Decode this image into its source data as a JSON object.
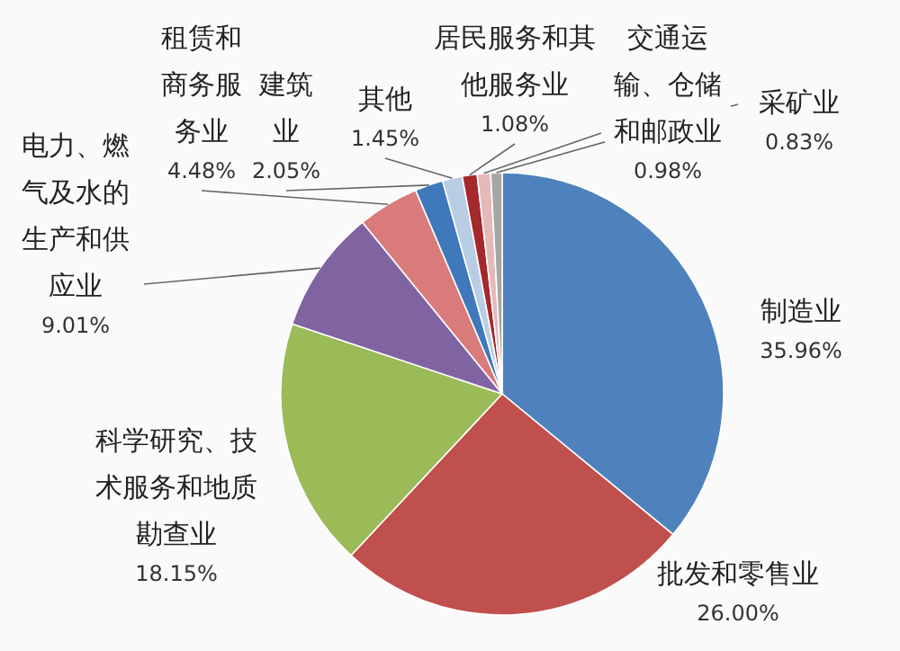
{
  "chart_data": {
    "type": "pie",
    "categories": [
      "制造业",
      "批发和零售业",
      "科学研究、技术服务和地质勘查业",
      "电力、燃气及水的生产和供应业",
      "租赁和商务服务业",
      "建筑业",
      "其他",
      "居民服务和其他服务业",
      "交通运输、仓储和邮政业",
      "采矿业"
    ],
    "values": [
      35.96,
      26.0,
      18.15,
      9.01,
      4.48,
      2.05,
      1.45,
      1.08,
      0.98,
      0.83
    ],
    "colors": [
      "#4f81bd",
      "#c0504d",
      "#9bbb59",
      "#8064a2",
      "#d97b7b",
      "#3f78bb",
      "#b9cde5",
      "#a5282c",
      "#e6b9b8",
      "#a6a6a6"
    ],
    "value_labels": [
      "35.96%",
      "26.00%",
      "18.15%",
      "9.01%",
      "4.48%",
      "2.05%",
      "1.45%",
      "1.08%",
      "0.98%",
      "0.83%"
    ]
  }
}
